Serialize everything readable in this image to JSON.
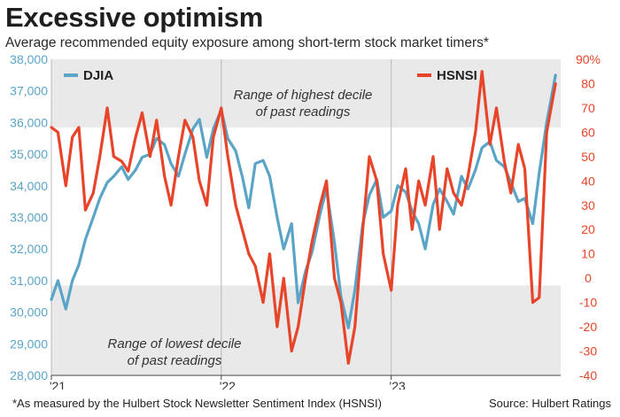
{
  "header": {
    "title": "Excessive optimism",
    "subtitle": "Average recommended equity exposure among short-term stock market timers*"
  },
  "footer": {
    "note": "*As measured by the Hulbert Stock Newsletter Sentiment Index (HSNSI)",
    "source": "Source: Hulbert Ratings"
  },
  "colors": {
    "djia": "#5aa4c8",
    "hsnsi": "#e8442a",
    "band": "#e9e9e9",
    "grid": "#b8b8b8"
  },
  "chart_data": {
    "type": "line",
    "title": "Excessive optimism",
    "subtitle": "Average recommended equity exposure among short-term stock market timers*",
    "x_tick_labels": [
      "'21",
      "'22",
      "'23"
    ],
    "x_ticks": [
      "2021-01",
      "2022-01",
      "2023-01"
    ],
    "xlim": [
      "2021-01-01",
      "2023-12-31"
    ],
    "left_axis": {
      "ylim": [
        28000,
        38000
      ],
      "tick_labels": [
        "38,000",
        "37,000",
        "36,000",
        "35,000",
        "34,000",
        "33,000",
        "32,000",
        "31,000",
        "30,000",
        "29,000",
        "28,000"
      ]
    },
    "right_axis": {
      "ylim": [
        -40,
        90
      ],
      "tick_labels": [
        "90%",
        "80",
        "70",
        "60",
        "50",
        "40",
        "30",
        "20",
        "10",
        "0",
        "-10",
        "-20",
        "-30",
        "-40"
      ]
    },
    "bands": [
      {
        "from_pct": 62,
        "to_pct": 90,
        "label_lines": [
          "Range of highest decile",
          "of past readings"
        ]
      },
      {
        "from_pct": -40,
        "to_pct": -3,
        "label_lines": [
          "Range of lowest decile",
          "of past readings"
        ]
      }
    ],
    "series": [
      {
        "name": "DJIA",
        "axis": "left",
        "x": [
          "2021-01-01",
          "2021-01-15",
          "2021-02-01",
          "2021-02-15",
          "2021-03-01",
          "2021-03-15",
          "2021-04-01",
          "2021-04-15",
          "2021-05-01",
          "2021-05-15",
          "2021-06-01",
          "2021-06-15",
          "2021-07-01",
          "2021-07-15",
          "2021-08-01",
          "2021-08-15",
          "2021-09-01",
          "2021-09-15",
          "2021-10-01",
          "2021-10-15",
          "2021-11-01",
          "2021-11-15",
          "2021-12-01",
          "2021-12-15",
          "2022-01-01",
          "2022-01-15",
          "2022-02-01",
          "2022-02-15",
          "2022-03-01",
          "2022-03-15",
          "2022-04-01",
          "2022-04-15",
          "2022-05-01",
          "2022-05-15",
          "2022-06-01",
          "2022-06-15",
          "2022-07-01",
          "2022-07-15",
          "2022-08-01",
          "2022-08-15",
          "2022-09-01",
          "2022-09-15",
          "2022-10-01",
          "2022-10-15",
          "2022-11-01",
          "2022-11-15",
          "2022-12-01",
          "2022-12-15",
          "2023-01-01",
          "2023-01-15",
          "2023-02-01",
          "2023-02-15",
          "2023-03-01",
          "2023-03-15",
          "2023-04-01",
          "2023-04-15",
          "2023-05-01",
          "2023-05-15",
          "2023-06-01",
          "2023-06-15",
          "2023-07-01",
          "2023-07-15",
          "2023-08-01",
          "2023-08-15",
          "2023-09-01",
          "2023-09-15",
          "2023-10-01",
          "2023-10-15",
          "2023-11-01",
          "2023-11-15",
          "2023-12-01",
          "2023-12-20"
        ],
        "values": [
          30400,
          31000,
          30100,
          31000,
          31500,
          32300,
          33000,
          33600,
          34100,
          34300,
          34600,
          34200,
          34500,
          34900,
          35000,
          35500,
          35300,
          34700,
          34300,
          35000,
          35800,
          36100,
          34900,
          35800,
          36400,
          35500,
          35100,
          34300,
          33300,
          34700,
          34800,
          34300,
          33000,
          32000,
          32800,
          30300,
          31300,
          31900,
          33100,
          33900,
          32200,
          30500,
          29500,
          30700,
          32800,
          33700,
          34200,
          33000,
          33200,
          34000,
          33800,
          33200,
          32800,
          32000,
          33400,
          33900,
          33500,
          33100,
          34300,
          33900,
          34500,
          35200,
          35400,
          34800,
          34600,
          34100,
          33500,
          33600,
          32800,
          34400,
          36000,
          37500
        ]
      },
      {
        "name": "HSNSI",
        "axis": "right",
        "x": [
          "2021-01-01",
          "2021-01-15",
          "2021-02-01",
          "2021-02-15",
          "2021-03-01",
          "2021-03-15",
          "2021-04-01",
          "2021-04-15",
          "2021-05-01",
          "2021-05-15",
          "2021-06-01",
          "2021-06-15",
          "2021-07-01",
          "2021-07-15",
          "2021-08-01",
          "2021-08-15",
          "2021-09-01",
          "2021-09-15",
          "2021-10-01",
          "2021-10-15",
          "2021-11-01",
          "2021-11-15",
          "2021-12-01",
          "2021-12-15",
          "2022-01-01",
          "2022-01-15",
          "2022-02-01",
          "2022-02-15",
          "2022-03-01",
          "2022-03-15",
          "2022-04-01",
          "2022-04-15",
          "2022-05-01",
          "2022-05-15",
          "2022-06-01",
          "2022-06-15",
          "2022-07-01",
          "2022-07-15",
          "2022-08-01",
          "2022-08-15",
          "2022-09-01",
          "2022-09-15",
          "2022-10-01",
          "2022-10-15",
          "2022-11-01",
          "2022-11-15",
          "2022-12-01",
          "2022-12-15",
          "2023-01-01",
          "2023-01-15",
          "2023-02-01",
          "2023-02-15",
          "2023-03-01",
          "2023-03-15",
          "2023-04-01",
          "2023-04-15",
          "2023-05-01",
          "2023-05-15",
          "2023-06-01",
          "2023-06-15",
          "2023-07-01",
          "2023-07-15",
          "2023-08-01",
          "2023-08-15",
          "2023-09-01",
          "2023-09-15",
          "2023-10-01",
          "2023-10-15",
          "2023-11-01",
          "2023-11-15",
          "2023-12-01",
          "2023-12-20"
        ],
        "values": [
          62,
          60,
          38,
          58,
          62,
          28,
          35,
          50,
          70,
          50,
          48,
          44,
          58,
          68,
          50,
          65,
          42,
          30,
          50,
          65,
          58,
          40,
          30,
          58,
          70,
          50,
          30,
          20,
          10,
          5,
          -10,
          10,
          -20,
          0,
          -30,
          -20,
          0,
          15,
          30,
          40,
          0,
          -10,
          -35,
          -20,
          20,
          50,
          40,
          10,
          -5,
          30,
          45,
          20,
          40,
          30,
          50,
          20,
          45,
          35,
          30,
          42,
          60,
          85,
          55,
          70,
          48,
          35,
          55,
          45,
          -10,
          -8,
          60,
          80
        ]
      }
    ]
  }
}
